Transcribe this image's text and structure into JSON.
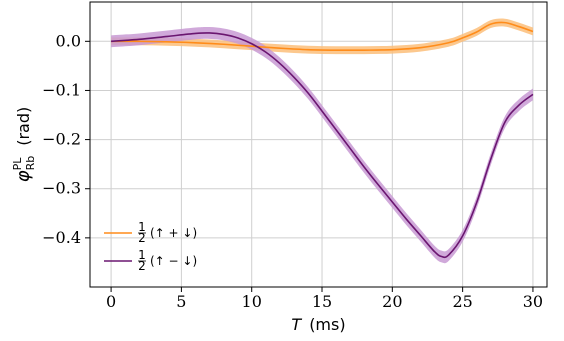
{
  "chart_data": {
    "type": "line",
    "xlabel": "T",
    "xlabel_unit": "(ms)",
    "ylabel_symbol": "φ",
    "ylabel_sup": "PL",
    "ylabel_sub": "Rb",
    "ylabel_unit": "(rad)",
    "xlim": [
      -1.5,
      31.0
    ],
    "ylim": [
      -0.5,
      0.08
    ],
    "xticks": [
      0,
      5,
      10,
      15,
      20,
      25,
      30
    ],
    "xtick_labels": [
      "0",
      "5",
      "10",
      "15",
      "20",
      "25",
      "30"
    ],
    "yticks": [
      0.0,
      -0.1,
      -0.2,
      -0.3,
      -0.4
    ],
    "ytick_labels": [
      "0.0",
      "−0.1",
      "−0.2",
      "−0.3",
      "−0.4"
    ],
    "grid": true,
    "legend_position": "lower-left",
    "series": [
      {
        "name": "½(↑ + ↓)",
        "legend_frac": "1/2",
        "legend_expr": "(↑ + ↓)",
        "color": "#ff8c1a",
        "band_color": "#fcbe7a",
        "band_halfwidth": 0.008,
        "x": [
          0,
          2,
          4,
          6,
          8,
          10,
          12,
          14,
          16,
          18,
          20,
          22,
          24,
          25,
          26,
          27,
          28,
          29,
          30
        ],
        "y": [
          0.0,
          0.0,
          -0.001,
          -0.003,
          -0.006,
          -0.01,
          -0.014,
          -0.017,
          -0.018,
          -0.018,
          -0.017,
          -0.013,
          -0.003,
          0.007,
          0.019,
          0.035,
          0.038,
          0.03,
          0.02
        ]
      },
      {
        "name": "½(↑ − ↓)",
        "legend_frac": "1/2",
        "legend_expr": "(↑ − ↓)",
        "color": "#6a1670",
        "band_color": "#c89ad4",
        "band_halfwidth": 0.012,
        "x": [
          0,
          2,
          4,
          6,
          7,
          8,
          9,
          10,
          11,
          12,
          13,
          14,
          15,
          16,
          17,
          18,
          19,
          20,
          21,
          22,
          23,
          23.5,
          24,
          25,
          26,
          27,
          28,
          29,
          30
        ],
        "y": [
          0.0,
          0.004,
          0.01,
          0.016,
          0.017,
          0.014,
          0.007,
          -0.005,
          -0.022,
          -0.045,
          -0.073,
          -0.105,
          -0.142,
          -0.18,
          -0.218,
          -0.256,
          -0.292,
          -0.327,
          -0.362,
          -0.395,
          -0.428,
          -0.438,
          -0.435,
          -0.396,
          -0.328,
          -0.24,
          -0.165,
          -0.13,
          -0.108
        ]
      }
    ]
  }
}
